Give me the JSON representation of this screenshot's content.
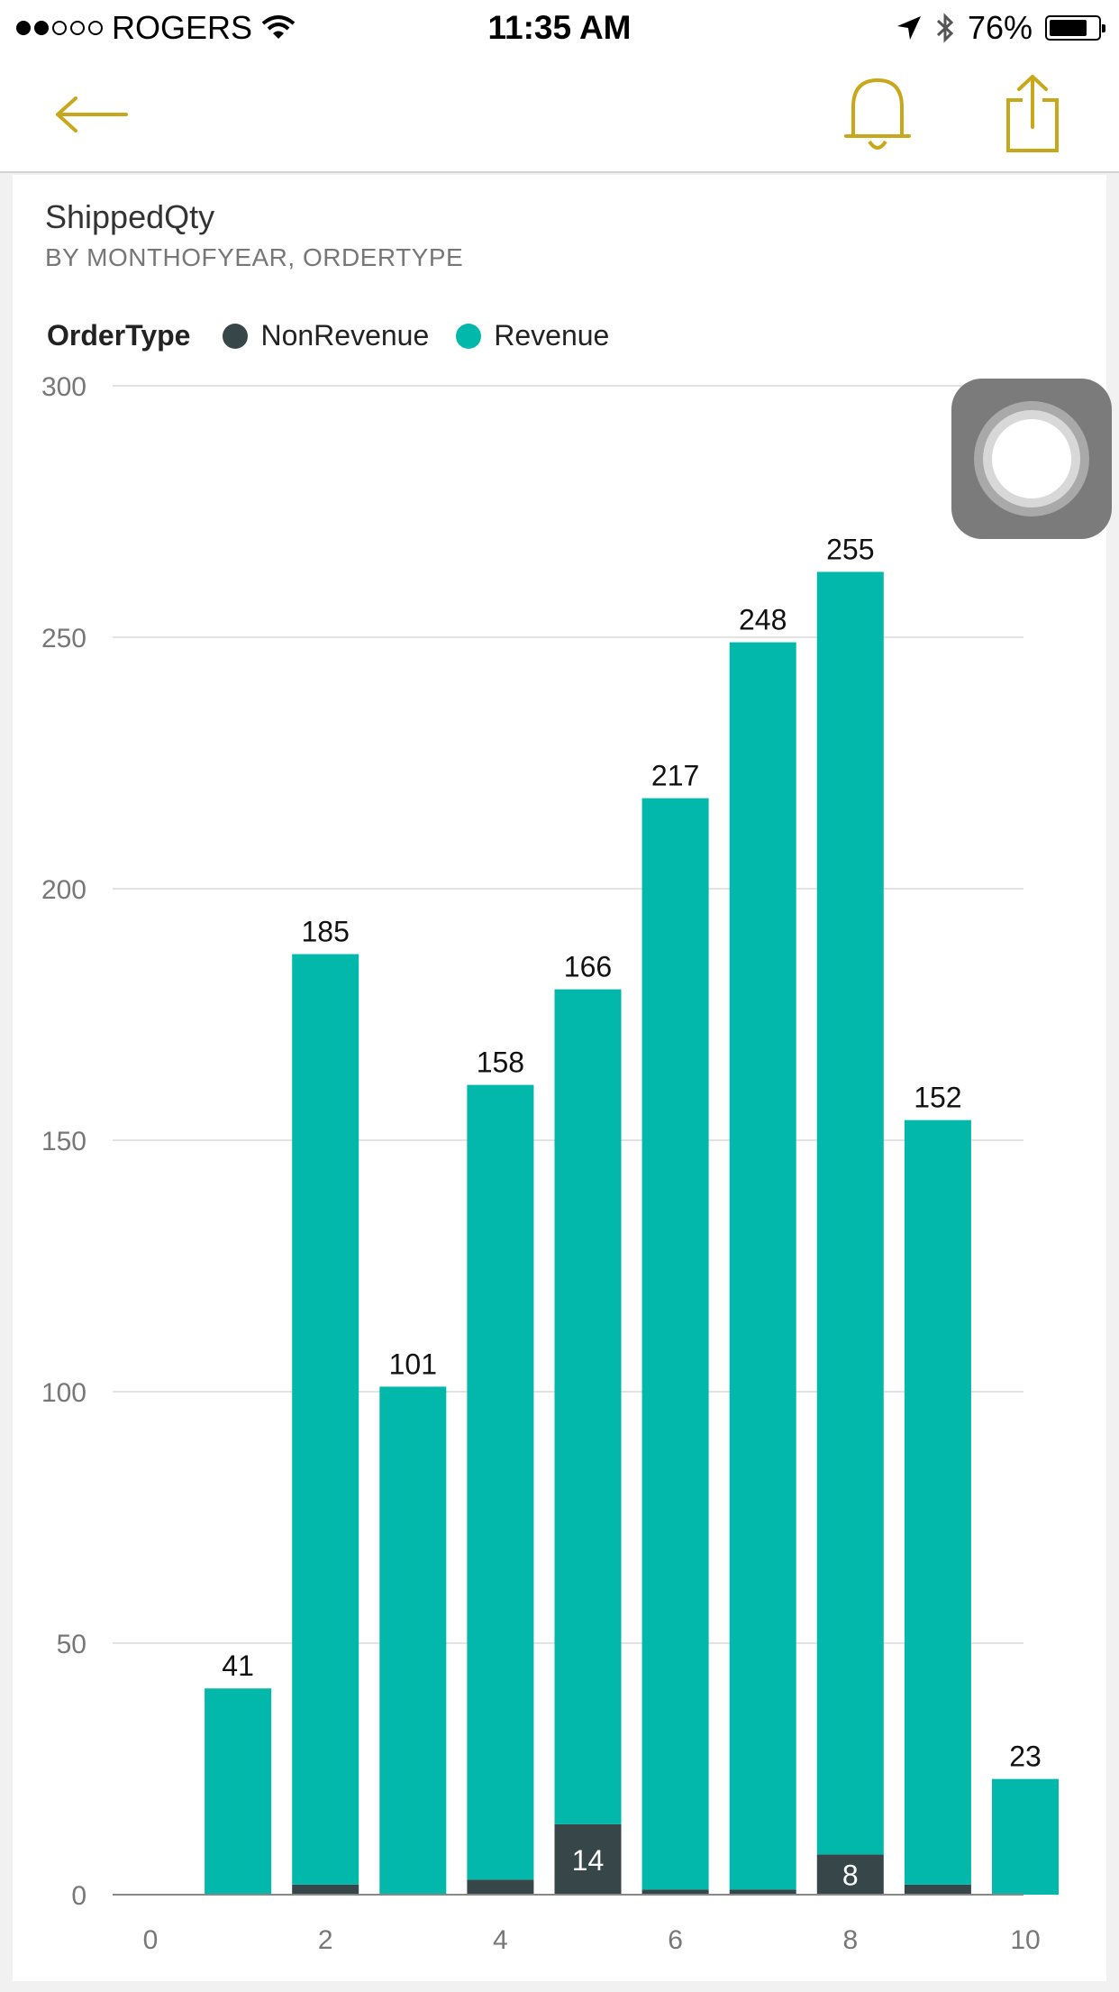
{
  "status_bar": {
    "carrier": "ROGERS",
    "signal_filled": 2,
    "signal_total": 5,
    "time": "11:35 AM",
    "battery": "76%",
    "battery_level": 0.76
  },
  "nav": {
    "back_icon": "arrow-left-icon",
    "alert_icon": "bell-icon",
    "share_icon": "share-icon",
    "accent_color": "#c9a71b"
  },
  "chart": {
    "title": "ShippedQty",
    "subtitle": "BY MONTHOFYEAR, ORDERTYPE",
    "legend_title": "OrderType",
    "legend": [
      {
        "name": "NonRevenue",
        "color": "#374649"
      },
      {
        "name": "Revenue",
        "color": "#01b8aa"
      }
    ]
  },
  "chart_data": {
    "type": "bar",
    "stacked": true,
    "title": "ShippedQty",
    "subtitle": "BY MONTHOFYEAR, ORDERTYPE",
    "xlabel": "",
    "ylabel": "",
    "x": [
      1,
      2,
      3,
      4,
      5,
      6,
      7,
      8,
      9,
      10
    ],
    "xlim": [
      0,
      10
    ],
    "xticks": [
      "0",
      "2",
      "4",
      "6",
      "8",
      "10"
    ],
    "ylim": [
      0,
      300
    ],
    "yticks": [
      "0",
      "50",
      "100",
      "150",
      "200",
      "250",
      "300"
    ],
    "grid": true,
    "legend_position": "top-left",
    "series": [
      {
        "name": "NonRevenue",
        "color": "#374649",
        "values": [
          0,
          2,
          0,
          3,
          14,
          1,
          1,
          8,
          2,
          0
        ]
      },
      {
        "name": "Revenue",
        "color": "#01b8aa",
        "values": [
          41,
          185,
          101,
          158,
          166,
          217,
          248,
          255,
          152,
          23
        ]
      }
    ],
    "data_labels": {
      "Revenue": [
        "41",
        "185",
        "101",
        "158",
        "166",
        "217",
        "248",
        "255",
        "152",
        "23"
      ],
      "NonRevenue": [
        "",
        "",
        "",
        "",
        "14",
        "",
        "",
        "8",
        "",
        ""
      ]
    }
  }
}
